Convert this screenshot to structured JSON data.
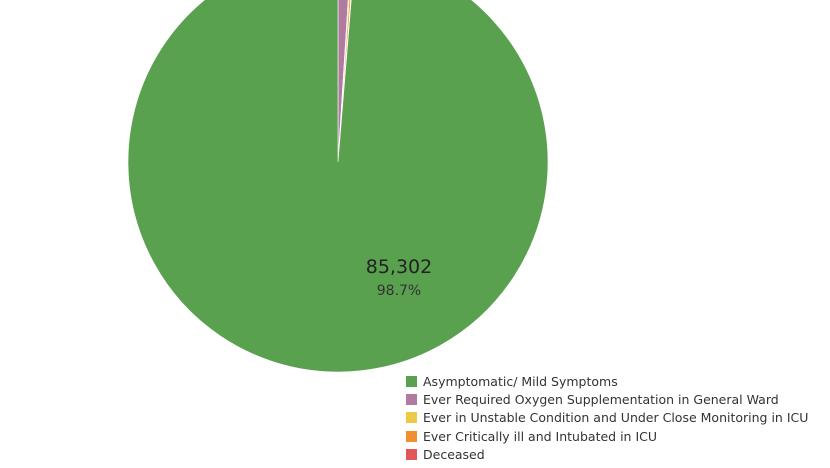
{
  "chart_data": {
    "type": "pie",
    "series": [
      {
        "name": "Asymptomatic/ Mild Symptoms",
        "value": 85302,
        "percent_label": "98.7%",
        "value_label": "85,302",
        "color": "#59a14f"
      },
      {
        "name": "Ever Required Oxygen Supplementation in General Ward",
        "percent": 1.0,
        "color": "#b07aa1"
      },
      {
        "name": "Ever in Unstable Condition and Under Close Monitoring in ICU",
        "percent": 0.1,
        "color": "#edc948"
      },
      {
        "name": "Ever Critically ill and Intubated in ICU",
        "percent": 0.15,
        "color": "#f28e2b"
      },
      {
        "name": "Deceased",
        "percent": 0.05,
        "color": "#e15759"
      }
    ],
    "legend_position": "bottom-right",
    "start_angle_deg": 0,
    "direction": "clockwise"
  }
}
